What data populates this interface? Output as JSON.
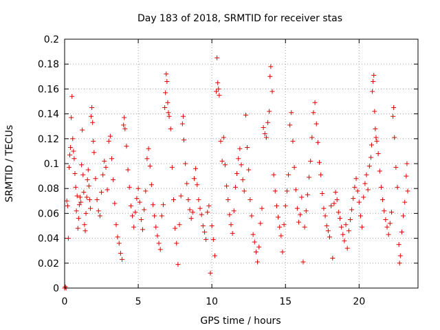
{
  "chart_data": {
    "type": "scatter",
    "title": "Day 183 of 2018, SRMTID for receiver stas",
    "xlabel": "GPS time / hours",
    "ylabel": "SRMTID / TECUs",
    "xlim": [
      0,
      24
    ],
    "ylim": [
      0,
      0.2
    ],
    "xticks": [
      0,
      5,
      10,
      15,
      20
    ],
    "xtick_labels": [
      "0",
      "5",
      "10",
      "15",
      "20"
    ],
    "yticks": [
      0,
      0.02,
      0.04,
      0.06,
      0.08,
      0.1,
      0.12,
      0.14,
      0.16,
      0.18,
      0.2
    ],
    "ytick_labels": [
      "0",
      "0.02",
      "0.04",
      "0.06",
      "0.08",
      "0.1",
      "0.12",
      "0.14",
      "0.16",
      "0.18",
      "0.2"
    ],
    "grid": true,
    "marker": "plus",
    "color": "#e00000",
    "points": [
      [
        0.0,
        0.0
      ],
      [
        0.05,
        0.001
      ],
      [
        0.1,
        0.0
      ],
      [
        0.15,
        0.07
      ],
      [
        0.2,
        0.066
      ],
      [
        0.25,
        0.04
      ],
      [
        0.3,
        0.097
      ],
      [
        0.35,
        0.107
      ],
      [
        0.4,
        0.113
      ],
      [
        0.45,
        0.137
      ],
      [
        0.5,
        0.154
      ],
      [
        0.55,
        0.12
      ],
      [
        0.6,
        0.11
      ],
      [
        0.65,
        0.104
      ],
      [
        0.7,
        0.092
      ],
      [
        0.75,
        0.081
      ],
      [
        0.8,
        0.062
      ],
      [
        0.85,
        0.074
      ],
      [
        0.9,
        0.048
      ],
      [
        0.95,
        0.056
      ],
      [
        1.0,
        0.067
      ],
      [
        1.05,
        0.073
      ],
      [
        1.1,
        0.069
      ],
      [
        1.15,
        0.099
      ],
      [
        1.2,
        0.127
      ],
      [
        1.25,
        0.091
      ],
      [
        1.3,
        0.077
      ],
      [
        1.35,
        0.051
      ],
      [
        1.4,
        0.046
      ],
      [
        1.45,
        0.06
      ],
      [
        1.5,
        0.073
      ],
      [
        1.55,
        0.087
      ],
      [
        1.6,
        0.095
      ],
      [
        1.65,
        0.082
      ],
      [
        1.7,
        0.071
      ],
      [
        1.75,
        0.064
      ],
      [
        1.8,
        0.138
      ],
      [
        1.85,
        0.145
      ],
      [
        1.9,
        0.133
      ],
      [
        1.95,
        0.118
      ],
      [
        2.0,
        0.109
      ],
      [
        2.1,
        0.088
      ],
      [
        2.2,
        0.071
      ],
      [
        2.3,
        0.062
      ],
      [
        2.4,
        0.058
      ],
      [
        2.5,
        0.077
      ],
      [
        2.6,
        0.091
      ],
      [
        2.7,
        0.102
      ],
      [
        2.8,
        0.097
      ],
      [
        2.9,
        0.079
      ],
      [
        3.0,
        0.118
      ],
      [
        3.1,
        0.122
      ],
      [
        3.2,
        0.104
      ],
      [
        3.3,
        0.087
      ],
      [
        3.4,
        0.068
      ],
      [
        3.5,
        0.051
      ],
      [
        3.6,
        0.041
      ],
      [
        3.7,
        0.036
      ],
      [
        3.8,
        0.028
      ],
      [
        3.9,
        0.023
      ],
      [
        4.0,
        0.131
      ],
      [
        4.05,
        0.137
      ],
      [
        4.1,
        0.128
      ],
      [
        4.2,
        0.114
      ],
      [
        4.3,
        0.095
      ],
      [
        4.4,
        0.081
      ],
      [
        4.5,
        0.066
      ],
      [
        4.6,
        0.058
      ],
      [
        4.7,
        0.049
      ],
      [
        4.8,
        0.061
      ],
      [
        4.9,
        0.072
      ],
      [
        5.0,
        0.08
      ],
      [
        5.1,
        0.069
      ],
      [
        5.2,
        0.055
      ],
      [
        5.3,
        0.047
      ],
      [
        5.4,
        0.063
      ],
      [
        5.5,
        0.078
      ],
      [
        5.6,
        0.104
      ],
      [
        5.7,
        0.112
      ],
      [
        5.8,
        0.098
      ],
      [
        5.9,
        0.083
      ],
      [
        6.0,
        0.067
      ],
      [
        6.1,
        0.058
      ],
      [
        6.2,
        0.049
      ],
      [
        6.3,
        0.042
      ],
      [
        6.4,
        0.036
      ],
      [
        6.5,
        0.031
      ],
      [
        6.6,
        0.058
      ],
      [
        6.7,
        0.067
      ],
      [
        6.8,
        0.145
      ],
      [
        6.85,
        0.157
      ],
      [
        6.9,
        0.172
      ],
      [
        6.95,
        0.166
      ],
      [
        7.0,
        0.149
      ],
      [
        7.05,
        0.141
      ],
      [
        7.1,
        0.138
      ],
      [
        7.2,
        0.128
      ],
      [
        7.3,
        0.097
      ],
      [
        7.4,
        0.071
      ],
      [
        7.5,
        0.048
      ],
      [
        7.6,
        0.036
      ],
      [
        7.7,
        0.019
      ],
      [
        7.8,
        0.051
      ],
      [
        7.9,
        0.074
      ],
      [
        8.0,
        0.132
      ],
      [
        8.05,
        0.138
      ],
      [
        8.1,
        0.119
      ],
      [
        8.2,
        0.1
      ],
      [
        8.3,
        0.084
      ],
      [
        8.4,
        0.071
      ],
      [
        8.5,
        0.063
      ],
      [
        8.6,
        0.056
      ],
      [
        8.7,
        0.061
      ],
      [
        8.8,
        0.088
      ],
      [
        8.9,
        0.096
      ],
      [
        9.0,
        0.083
      ],
      [
        9.1,
        0.071
      ],
      [
        9.2,
        0.064
      ],
      [
        9.3,
        0.059
      ],
      [
        9.4,
        0.05
      ],
      [
        9.5,
        0.045
      ],
      [
        9.6,
        0.039
      ],
      [
        9.7,
        0.061
      ],
      [
        9.8,
        0.066
      ],
      [
        9.9,
        0.012
      ],
      [
        10.0,
        0.05
      ],
      [
        10.1,
        0.039
      ],
      [
        10.2,
        0.026
      ],
      [
        10.3,
        0.158
      ],
      [
        10.35,
        0.185
      ],
      [
        10.4,
        0.165
      ],
      [
        10.45,
        0.16
      ],
      [
        10.5,
        0.155
      ],
      [
        10.6,
        0.118
      ],
      [
        10.7,
        0.102
      ],
      [
        10.8,
        0.121
      ],
      [
        10.9,
        0.099
      ],
      [
        11.0,
        0.082
      ],
      [
        11.1,
        0.071
      ],
      [
        11.2,
        0.059
      ],
      [
        11.3,
        0.051
      ],
      [
        11.4,
        0.044
      ],
      [
        11.5,
        0.062
      ],
      [
        11.6,
        0.081
      ],
      [
        11.7,
        0.092
      ],
      [
        11.8,
        0.104
      ],
      [
        11.9,
        0.112
      ],
      [
        12.0,
        0.099
      ],
      [
        12.1,
        0.087
      ],
      [
        12.2,
        0.078
      ],
      [
        12.3,
        0.139
      ],
      [
        12.4,
        0.113
      ],
      [
        12.5,
        0.095
      ],
      [
        12.6,
        0.071
      ],
      [
        12.7,
        0.058
      ],
      [
        12.8,
        0.043
      ],
      [
        12.9,
        0.037
      ],
      [
        13.0,
        0.029
      ],
      [
        13.1,
        0.021
      ],
      [
        13.2,
        0.033
      ],
      [
        13.3,
        0.052
      ],
      [
        13.4,
        0.064
      ],
      [
        13.5,
        0.129
      ],
      [
        13.6,
        0.124
      ],
      [
        13.7,
        0.121
      ],
      [
        13.8,
        0.133
      ],
      [
        13.9,
        0.142
      ],
      [
        13.95,
        0.17
      ],
      [
        14.0,
        0.178
      ],
      [
        14.1,
        0.158
      ],
      [
        14.2,
        0.091
      ],
      [
        14.3,
        0.078
      ],
      [
        14.4,
        0.066
      ],
      [
        14.5,
        0.057
      ],
      [
        14.6,
        0.049
      ],
      [
        14.7,
        0.042
      ],
      [
        14.8,
        0.029
      ],
      [
        14.9,
        0.051
      ],
      [
        15.0,
        0.066
      ],
      [
        15.1,
        0.078
      ],
      [
        15.2,
        0.091
      ],
      [
        15.3,
        0.131
      ],
      [
        15.4,
        0.141
      ],
      [
        15.5,
        0.118
      ],
      [
        15.6,
        0.097
      ],
      [
        15.7,
        0.079
      ],
      [
        15.8,
        0.064
      ],
      [
        15.9,
        0.053
      ],
      [
        16.0,
        0.059
      ],
      [
        16.1,
        0.073
      ],
      [
        16.2,
        0.021
      ],
      [
        16.3,
        0.049
      ],
      [
        16.4,
        0.062
      ],
      [
        16.5,
        0.075
      ],
      [
        16.6,
        0.089
      ],
      [
        16.7,
        0.102
      ],
      [
        16.8,
        0.121
      ],
      [
        16.9,
        0.141
      ],
      [
        17.0,
        0.149
      ],
      [
        17.1,
        0.132
      ],
      [
        17.2,
        0.117
      ],
      [
        17.3,
        0.101
      ],
      [
        17.4,
        0.091
      ],
      [
        17.5,
        0.076
      ],
      [
        17.6,
        0.064
      ],
      [
        17.7,
        0.058
      ],
      [
        17.8,
        0.05
      ],
      [
        17.9,
        0.046
      ],
      [
        18.0,
        0.041
      ],
      [
        18.1,
        0.066
      ],
      [
        18.2,
        0.024
      ],
      [
        18.3,
        0.068
      ],
      [
        18.4,
        0.077
      ],
      [
        18.5,
        0.071
      ],
      [
        18.6,
        0.061
      ],
      [
        18.7,
        0.056
      ],
      [
        18.8,
        0.049
      ],
      [
        18.9,
        0.043
      ],
      [
        19.0,
        0.038
      ],
      [
        19.1,
        0.051
      ],
      [
        19.2,
        0.032
      ],
      [
        19.3,
        0.046
      ],
      [
        19.4,
        0.055
      ],
      [
        19.5,
        0.063
      ],
      [
        19.6,
        0.072
      ],
      [
        19.7,
        0.081
      ],
      [
        19.8,
        0.088
      ],
      [
        19.9,
        0.078
      ],
      [
        20.0,
        0.069
      ],
      [
        20.1,
        0.058
      ],
      [
        20.2,
        0.049
      ],
      [
        20.3,
        0.073
      ],
      [
        20.4,
        0.084
      ],
      [
        20.5,
        0.091
      ],
      [
        20.6,
        0.079
      ],
      [
        20.7,
        0.098
      ],
      [
        20.8,
        0.105
      ],
      [
        20.85,
        0.115
      ],
      [
        20.9,
        0.158
      ],
      [
        20.95,
        0.166
      ],
      [
        21.0,
        0.171
      ],
      [
        21.05,
        0.142
      ],
      [
        21.1,
        0.128
      ],
      [
        21.15,
        0.121
      ],
      [
        21.2,
        0.118
      ],
      [
        21.3,
        0.108
      ],
      [
        21.4,
        0.094
      ],
      [
        21.5,
        0.081
      ],
      [
        21.6,
        0.071
      ],
      [
        21.7,
        0.062
      ],
      [
        21.8,
        0.055
      ],
      [
        21.9,
        0.049
      ],
      [
        22.0,
        0.043
      ],
      [
        22.1,
        0.052
      ],
      [
        22.2,
        0.061
      ],
      [
        22.3,
        0.138
      ],
      [
        22.35,
        0.145
      ],
      [
        22.4,
        0.121
      ],
      [
        22.5,
        0.097
      ],
      [
        22.6,
        0.081
      ],
      [
        22.7,
        0.035
      ],
      [
        22.75,
        0.02
      ],
      [
        22.8,
        0.026
      ],
      [
        22.9,
        0.045
      ],
      [
        23.0,
        0.058
      ],
      [
        23.1,
        0.069
      ],
      [
        23.2,
        0.09
      ],
      [
        23.25,
        0.1
      ],
      [
        23.3,
        0.078
      ]
    ]
  }
}
